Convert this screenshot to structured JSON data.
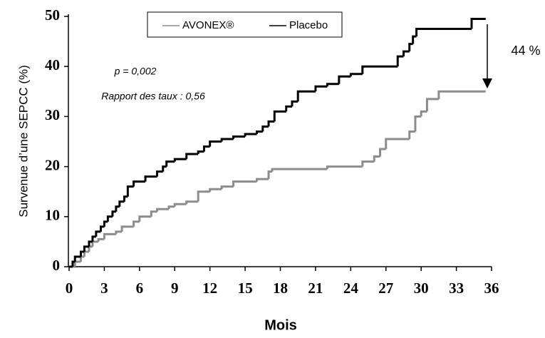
{
  "chart_data": {
    "type": "step",
    "xlabel": "Mois",
    "ylabel": "Survenue d’une SEPCC (%)",
    "xlim": [
      0,
      36
    ],
    "xticks": [
      0,
      3,
      6,
      9,
      12,
      15,
      18,
      21,
      24,
      27,
      30,
      33,
      36
    ],
    "ylim": [
      0,
      50
    ],
    "yticks": [
      0,
      10,
      20,
      30,
      40,
      50
    ],
    "grid": false,
    "legend": "top",
    "annotations": [
      "p = 0,002",
      "Rapport des taux : 0,56",
      "44 %"
    ],
    "series": [
      {
        "name": "AVONEX®",
        "color": "#8c8c8c",
        "x": [
          0,
          0.5,
          1,
          1.3,
          1.7,
          2,
          2.5,
          3,
          4,
          4.5,
          5.5,
          6,
          7,
          7.5,
          8.5,
          9,
          10,
          11,
          12,
          13,
          14,
          16,
          17,
          17.3,
          22,
          25,
          26,
          26.5,
          27,
          29,
          29.5,
          30,
          30.5,
          31.5,
          35.5
        ],
        "values": [
          0,
          1,
          2,
          3,
          4,
          5,
          5.5,
          6.5,
          7,
          8,
          9,
          10,
          11,
          11.5,
          12,
          12.5,
          13,
          15,
          15.5,
          16,
          17,
          17.5,
          19,
          19.5,
          20,
          21,
          22,
          23.5,
          25.5,
          27,
          30,
          31,
          33.5,
          35,
          35
        ]
      },
      {
        "name": "Placebo",
        "color": "#000000",
        "x": [
          0,
          0.3,
          0.5,
          1,
          1.3,
          1.7,
          2,
          2.3,
          2.7,
          3,
          3.3,
          3.7,
          4,
          4.3,
          4.7,
          5,
          5.5,
          6.5,
          7.5,
          8,
          8.3,
          9,
          10,
          11,
          11.5,
          12,
          13,
          14,
          15,
          16,
          16.5,
          17,
          17.5,
          18.5,
          19,
          19.5,
          21,
          22,
          23,
          24,
          25,
          28,
          28.5,
          29,
          29.3,
          29.6,
          34.3,
          35.5
        ],
        "values": [
          0,
          1,
          2,
          3,
          4,
          5,
          6,
          7,
          8,
          9,
          10,
          11,
          12,
          13,
          14,
          16,
          17,
          18,
          19,
          20,
          21,
          21.5,
          22.5,
          23,
          24,
          25,
          25.5,
          26,
          26.5,
          27,
          28,
          29,
          31,
          32,
          33,
          35,
          36,
          36.5,
          38,
          38.5,
          40,
          42,
          43,
          44.5,
          46,
          47.5,
          49.5,
          49.5
        ]
      }
    ]
  }
}
